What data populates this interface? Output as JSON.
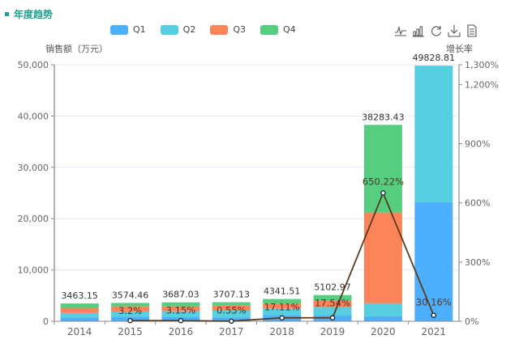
{
  "header": {
    "title": "年度趋势"
  },
  "toolbox": [
    {
      "name": "line-chart-icon"
    },
    {
      "name": "bar-chart-icon"
    },
    {
      "name": "restore-icon"
    },
    {
      "name": "download-icon"
    },
    {
      "name": "data-view-icon"
    }
  ],
  "chart_data": {
    "type": "bar",
    "title": "年度趋势",
    "ylabel": "销售额（万元）",
    "ylabel_right": "增长率",
    "categories": [
      "2014",
      "2015",
      "2016",
      "2017",
      "2018",
      "2019",
      "2020",
      "2021"
    ],
    "ylim": [
      0,
      50000
    ],
    "yticks": [
      "0",
      "10,000",
      "20,000",
      "30,000",
      "40,000",
      "50,000"
    ],
    "ylim_right": [
      0,
      1300
    ],
    "yticks_right": [
      "0%",
      "300%",
      "600%",
      "900%",
      "1,200%",
      "1,300%"
    ],
    "yticks_right_values": [
      0,
      300,
      600,
      900,
      1200,
      1300
    ],
    "legend_position": "top",
    "grid": true,
    "series": [
      {
        "name": "Q1",
        "color": "#4fafff",
        "values": [
          700,
          900,
          850,
          700,
          1200,
          1100,
          1000,
          23200
        ]
      },
      {
        "name": "Q2",
        "color": "#56cfe0",
        "values": [
          900,
          1000,
          1100,
          1350,
          1300,
          1650,
          2500,
          26628.81
        ]
      },
      {
        "name": "Q3",
        "color": "#fb8559",
        "values": [
          1000,
          1000,
          950,
          1000,
          950,
          1200,
          17700,
          0
        ]
      },
      {
        "name": "Q4",
        "color": "#55cf7f",
        "values": [
          863.15,
          674.46,
          787.03,
          657.13,
          891.51,
          1152.97,
          17083.43,
          0
        ]
      }
    ],
    "totals": [
      "3463.15",
      "3574.46",
      "3687.03",
      "3707.13",
      "4341.51",
      "5102.97",
      "38283.43",
      "49828.81"
    ],
    "growth": {
      "name": "增长率",
      "color": "#5a3a1e",
      "values": [
        null,
        3.2,
        3.15,
        0.55,
        17.11,
        17.54,
        650.22,
        30.16
      ],
      "labels": [
        "",
        "3.2%",
        "3.15%",
        "0.55%",
        "17.11%",
        "17.54%",
        "650.22%",
        "30.16%"
      ]
    }
  }
}
